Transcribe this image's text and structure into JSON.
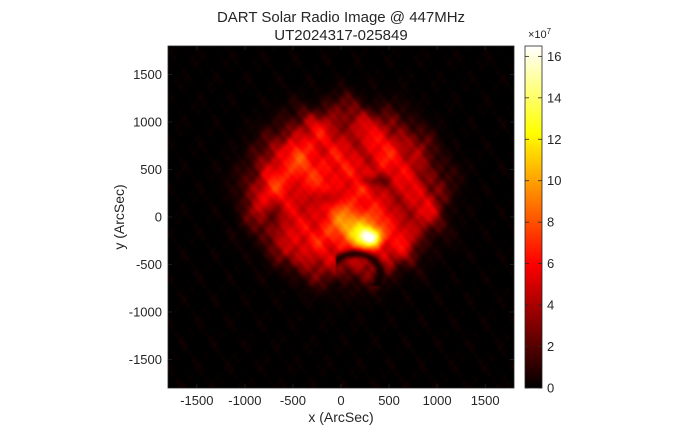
{
  "chart_data": {
    "type": "heatmap",
    "title": "DART Solar Radio Image @ 447MHz",
    "subtitle": "UT2024317-025849",
    "xlabel": "x (ArcSec)",
    "ylabel": "y (ArcSec)",
    "xlim": [
      -1800,
      1800
    ],
    "ylim": [
      -1800,
      1800
    ],
    "x_ticks": [
      -1500,
      -1000,
      -500,
      0,
      500,
      1000,
      1500
    ],
    "y_ticks": [
      1500,
      1000,
      500,
      0,
      -500,
      -1000,
      -1500
    ],
    "colorbar": {
      "colormap": "hot",
      "range": [
        0,
        16.5
      ],
      "ticks": [
        0,
        2,
        4,
        6,
        8,
        10,
        12,
        14,
        16
      ],
      "exponent_label": "×10",
      "exponent_power": "7"
    },
    "features": {
      "disk_center": [
        50,
        250
      ],
      "disk_radius": 950,
      "peak_location": [
        300,
        -220
      ],
      "peak_value": 16
    }
  }
}
